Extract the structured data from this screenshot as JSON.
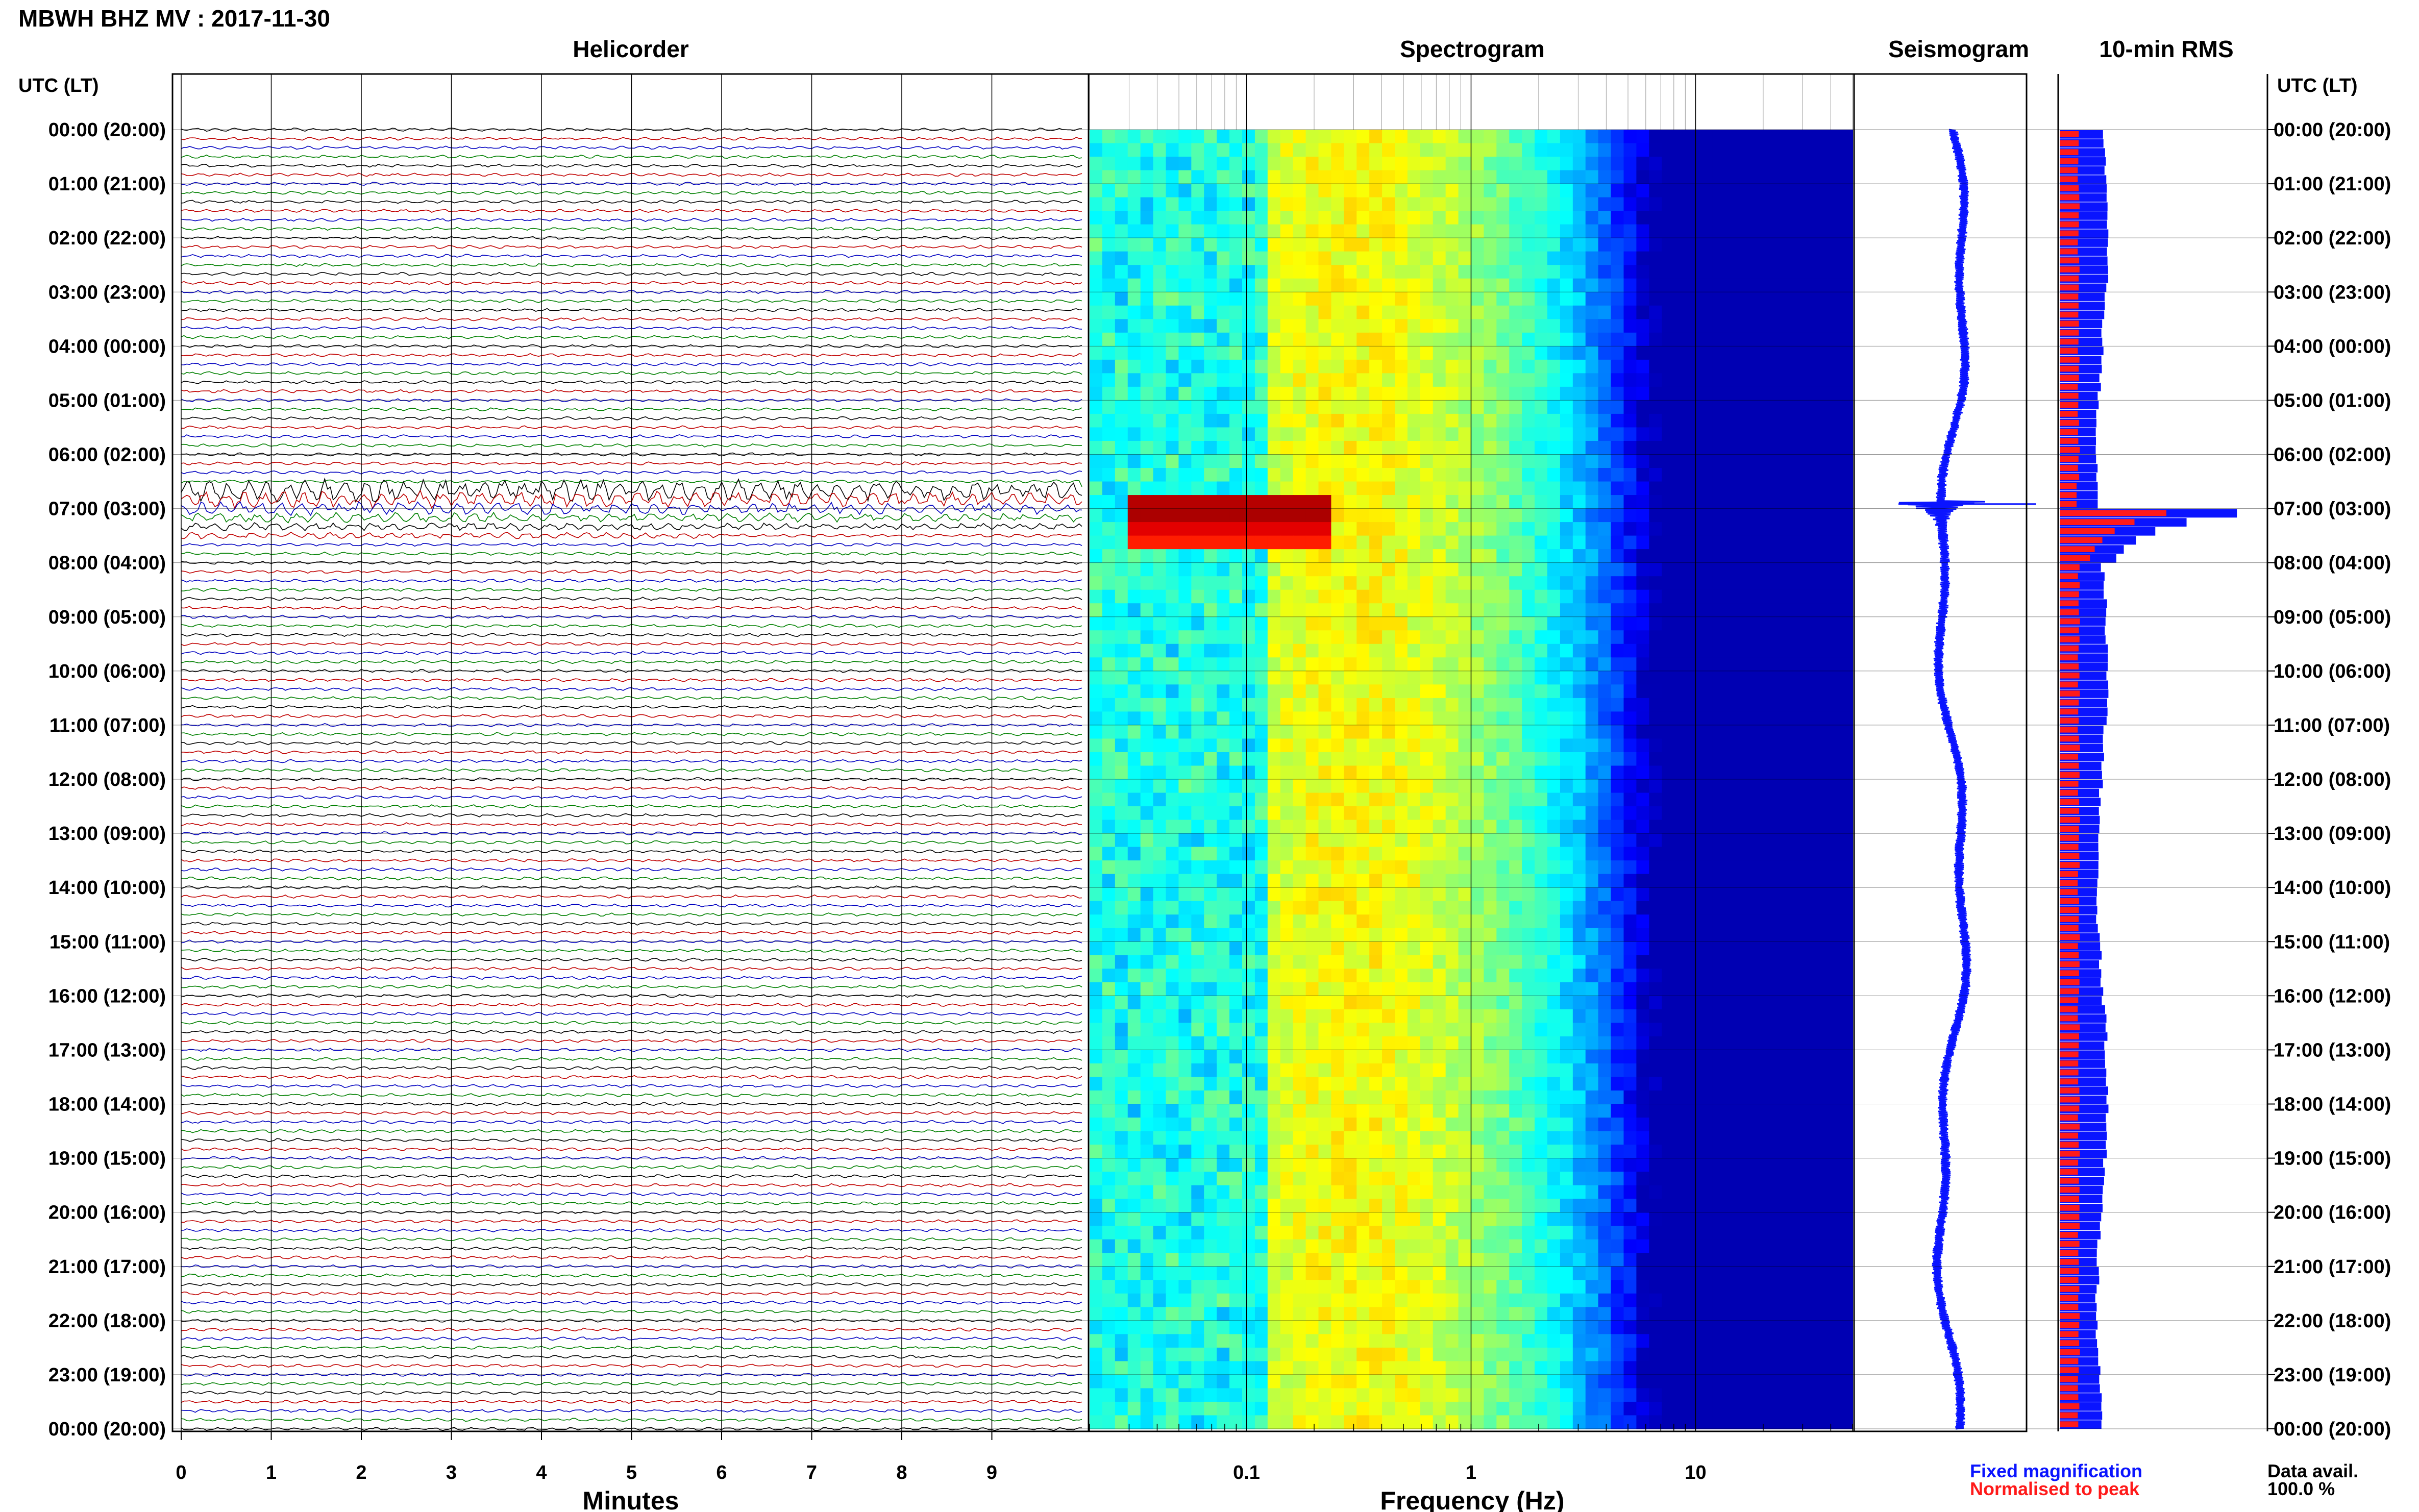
{
  "figure": {
    "title": "MBWH BHZ MV : 2017-11-30",
    "panels": {
      "helicorder": "Helicorder",
      "spectrogram": "Spectrogram",
      "seismogram": "Seismogram",
      "rms": "10-min RMS"
    },
    "time_axis_label": "UTC (LT)",
    "data_availability_label": "Data avail.",
    "data_availability_value": "100.0 %",
    "legend": {
      "fixed": "Fixed magnification",
      "normalised": "Normalised to peak",
      "fixed_color": "#0a14ff",
      "normalised_color": "#ff1a1a"
    },
    "trace_colors": [
      "#000000",
      "#c00000",
      "#0000c0",
      "#008000"
    ]
  },
  "chart_data": [
    {
      "type": "line",
      "panel": "helicorder",
      "xlabel": "Minutes",
      "x_ticks": [
        "0",
        "1",
        "2",
        "3",
        "4",
        "5",
        "6",
        "7",
        "8",
        "9"
      ],
      "xlim": [
        0,
        10
      ],
      "hour_labels": [
        "00:00 (20:00)",
        "01:00 (21:00)",
        "02:00 (22:00)",
        "03:00 (23:00)",
        "04:00 (00:00)",
        "05:00 (01:00)",
        "06:00 (02:00)",
        "07:00 (03:00)",
        "08:00 (04:00)",
        "09:00 (05:00)",
        "10:00 (06:00)",
        "11:00 (07:00)",
        "12:00 (08:00)",
        "13:00 (09:00)",
        "14:00 (10:00)",
        "15:00 (11:00)",
        "16:00 (12:00)",
        "17:00 (13:00)",
        "18:00 (14:00)",
        "19:00 (15:00)",
        "20:00 (16:00)",
        "21:00 (17:00)",
        "22:00 (18:00)",
        "23:00 (19:00)",
        "00:00 (20:00)"
      ],
      "lines_per_hour": 6,
      "event_onset_utc": "06:40",
      "event_strong_until_utc": "07:30"
    },
    {
      "type": "heatmap",
      "panel": "spectrogram",
      "xlabel": "Frequency (Hz)",
      "x_scale": "log",
      "xlim": [
        0.02,
        50
      ],
      "x_ticks": [
        "0.1",
        "1",
        "10"
      ],
      "colormap": "jet",
      "event_band_hz": [
        0.03,
        0.25
      ],
      "event_hours_utc": [
        6.7,
        7.6
      ]
    },
    {
      "type": "line",
      "panel": "seismogram",
      "event_time_utc": "06:55"
    },
    {
      "type": "bar",
      "panel": "10-min RMS",
      "orientation": "horizontal",
      "series": [
        {
          "name": "Fixed magnification",
          "peak_hour_utc": 7.0
        },
        {
          "name": "Normalised to peak",
          "peak_hour_utc": 7.0
        }
      ]
    }
  ]
}
